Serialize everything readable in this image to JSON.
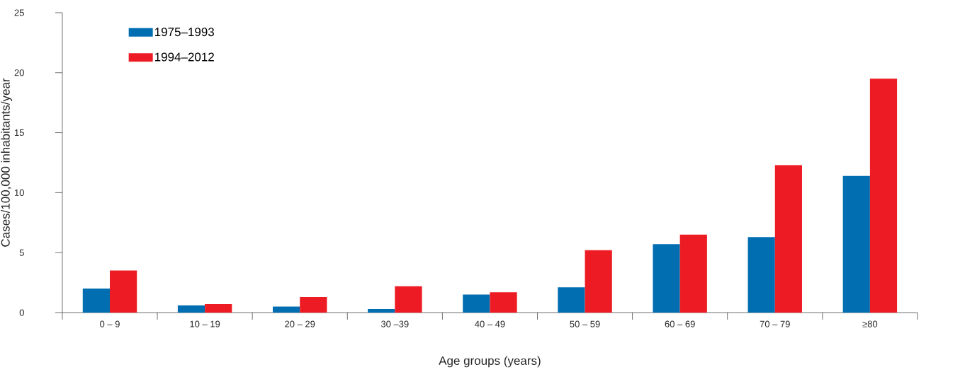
{
  "chart_data": {
    "type": "bar",
    "xlabel": "Age groups (years)",
    "ylabel": "Cases/100,000 inhabitants/year",
    "categories": [
      "0 – 9",
      "10 – 19",
      "20 – 29",
      "30 –39",
      "40 – 49",
      "50 – 59",
      "60 – 69",
      "70 – 79",
      "≥80"
    ],
    "series": [
      {
        "name": "1975–1993",
        "color": "#006eb0",
        "values": [
          2.0,
          0.6,
          0.5,
          0.3,
          1.5,
          2.1,
          5.7,
          6.3,
          11.4
        ]
      },
      {
        "name": "1994–2012",
        "color": "#ed1c24",
        "values": [
          3.5,
          0.7,
          1.3,
          2.2,
          1.7,
          5.2,
          6.5,
          12.3,
          19.5
        ]
      }
    ],
    "ylim": [
      0,
      25
    ],
    "yticks": [
      0,
      5,
      10,
      15,
      20,
      25
    ],
    "grid": false,
    "legend": "top left"
  }
}
